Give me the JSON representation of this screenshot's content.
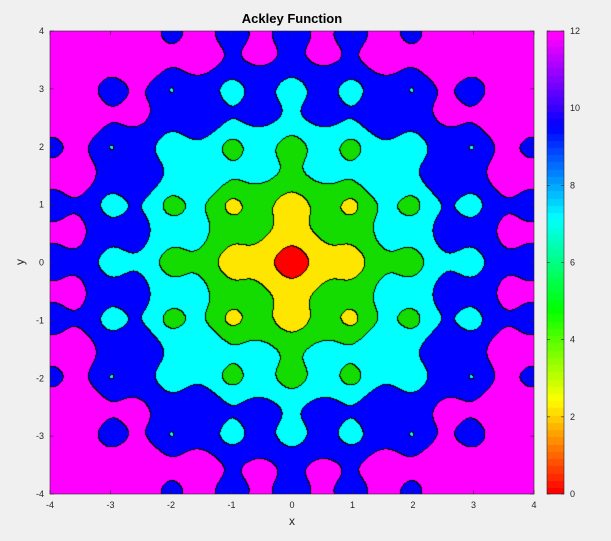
{
  "chart_data": {
    "type": "contourf",
    "title": "Ackley Function",
    "xlabel": "x",
    "ylabel": "y",
    "xlim": [
      -4,
      4
    ],
    "ylim": [
      -4,
      4
    ],
    "x_ticks": [
      -4,
      -3,
      -2,
      -1,
      0,
      1,
      2,
      3,
      4
    ],
    "y_ticks": [
      -4,
      -3,
      -2,
      -1,
      0,
      1,
      2,
      3,
      4
    ],
    "levels": [
      0,
      2,
      4,
      6,
      8,
      10,
      12
    ],
    "level_colors": [
      "#ff0000",
      "#ffe600",
      "#14dc00",
      "#00ffff",
      "#0000ff",
      "#ff00ff"
    ],
    "colorbar": {
      "range": [
        0,
        12
      ],
      "ticks": [
        0,
        2,
        4,
        6,
        8,
        10,
        12
      ],
      "colormap": "hsv",
      "placement": "right"
    },
    "grid": false
  }
}
